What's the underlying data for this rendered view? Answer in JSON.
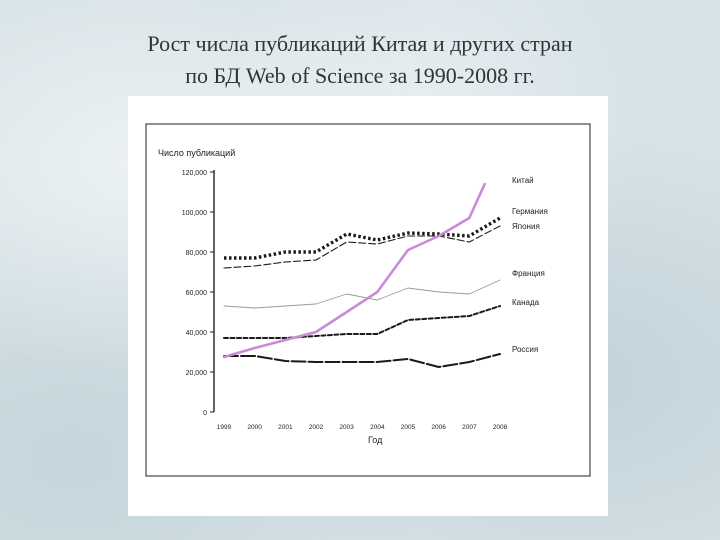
{
  "slide": {
    "title_line1": "Рост числа публикаций Китая и других стран",
    "title_line2": "по БД Web of Science за 1990-2008 гг."
  },
  "chart_data": {
    "type": "line",
    "title": "",
    "ylabel": "Число публикаций",
    "xlabel": "Год",
    "x": [
      "1999",
      "2000",
      "2001",
      "2002",
      "2003",
      "2004",
      "2005",
      "2006",
      "2007",
      "2008"
    ],
    "ylim": [
      0,
      120000
    ],
    "yticks": [
      "0",
      "20,000",
      "40,000",
      "60,000",
      "80,000",
      "100,000",
      "120,000"
    ],
    "grid": false,
    "series": [
      {
        "name": "Китай",
        "color": "#c98ad9",
        "style": "solid-thick",
        "values": [
          27500,
          32000,
          36000,
          40000,
          50000,
          60000,
          81000,
          88000,
          null,
          null
        ],
        "points": [
          [
            1999,
            27500
          ],
          [
            2000,
            32000
          ],
          [
            2001,
            36000
          ],
          [
            2002,
            40000
          ],
          [
            2003,
            50000
          ],
          [
            2004,
            60000
          ],
          [
            2005,
            81000
          ],
          [
            2006,
            88000
          ],
          [
            2007,
            97000
          ],
          [
            2007.5,
            114000
          ]
        ]
      },
      {
        "name": "Германия",
        "color": "#1a1a1a",
        "style": "dotted-thick",
        "values": [
          77000,
          77000,
          80000,
          80000,
          89000,
          86000,
          89500,
          89000,
          88000,
          97000
        ]
      },
      {
        "name": "Япония",
        "color": "#1a1a1a",
        "style": "dashed",
        "values": [
          72000,
          73000,
          75000,
          76000,
          85000,
          84000,
          88000,
          88000,
          85000,
          93000
        ]
      },
      {
        "name": "Франция",
        "color": "#9a9a9a",
        "style": "solid-thin",
        "values": [
          53000,
          52000,
          53000,
          54000,
          59000,
          56000,
          62000,
          60000,
          59000,
          66000
        ]
      },
      {
        "name": "Канада",
        "color": "#1a1a1a",
        "style": "dashed-thick",
        "values": [
          37000,
          37000,
          37000,
          38000,
          39000,
          39000,
          46000,
          47000,
          48000,
          53000
        ]
      },
      {
        "name": "Россия",
        "color": "#1a1a1a",
        "style": "long-dash-thick",
        "values": [
          28000,
          28000,
          25500,
          25000,
          25000,
          25000,
          26500,
          22500,
          25000,
          29000
        ]
      }
    ],
    "legend": "right, next to line ends"
  }
}
